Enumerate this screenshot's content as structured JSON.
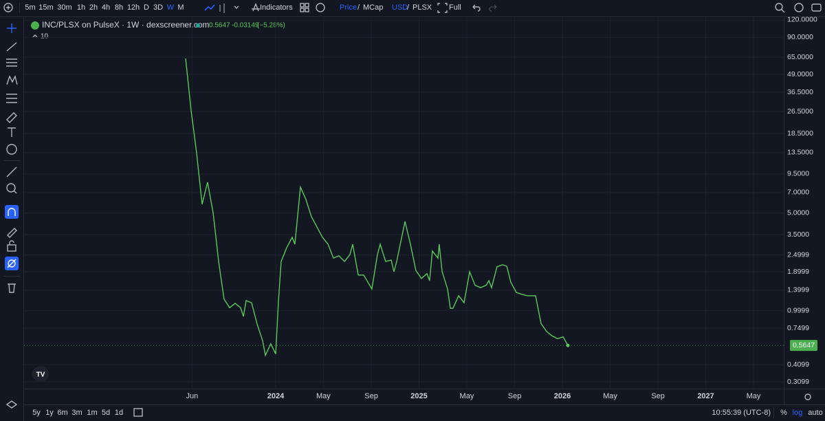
{
  "toolbar": {
    "intervals": [
      "5m",
      "15m",
      "30m",
      "1h",
      "2h",
      "4h",
      "8h",
      "12h",
      "D",
      "3D",
      "W",
      "M"
    ],
    "active_interval": "W",
    "indicators": "Indicators",
    "price": "Price",
    "mcap": "MCap",
    "usd": "USD",
    "plsx": "PLSX",
    "slash": "/",
    "full": "Full"
  },
  "bottom_bar": {
    "ranges": [
      "5y",
      "1y",
      "6m",
      "3m",
      "1m",
      "5d",
      "1d"
    ],
    "clock": "10:55:39 (UTC-8)",
    "percent": "%",
    "log": "log",
    "auto": "auto"
  },
  "chart_data": {
    "type": "line",
    "title": "INC/PLSX on PulseX · 1W · dexscreener.com",
    "indicator_value": "10",
    "last": 0.5647,
    "change": -0.03149,
    "change_pct_label": "(−5.28%)",
    "log_scale": true,
    "grid": true,
    "x": [
      2023.372,
      2023.41,
      2023.448,
      2023.487,
      2023.525,
      2023.564,
      2023.602,
      2023.64,
      2023.679,
      2023.717,
      2023.755,
      2023.775,
      2023.794,
      2023.832,
      2023.871,
      2023.909,
      2023.928,
      2023.966,
      2024.0,
      2024.019,
      2024.038,
      2024.077,
      2024.115,
      2024.134,
      2024.173,
      2024.211,
      2024.249,
      2024.288,
      2024.326,
      2024.365,
      2024.403,
      2024.441,
      2024.48,
      2024.518,
      2024.537,
      2024.576,
      2024.614,
      2024.671,
      2024.71,
      2024.729,
      2024.767,
      2024.806,
      2024.825,
      2024.844,
      2024.902,
      2024.94,
      2024.978,
      2025.017,
      2025.055,
      2025.074,
      2025.093,
      2025.132,
      2025.141,
      2025.161,
      2025.199,
      2025.218,
      2025.237,
      2025.276,
      2025.314,
      2025.353,
      2025.391,
      2025.429,
      2025.468,
      2025.487,
      2025.506,
      2025.544,
      2025.583,
      2025.612,
      2025.64,
      2025.679,
      2025.717,
      2025.755,
      2025.794,
      2025.813,
      2025.851,
      2025.89,
      2025.928,
      2025.966,
      2026.005,
      2026.038
    ],
    "series": [
      {
        "name": "INC/PLSX",
        "color": "#5cc85c",
        "values": [
          63.6,
          27.2,
          13.5,
          5.77,
          8.29,
          4.98,
          2.25,
          1.21,
          1.05,
          1.13,
          1.05,
          0.91,
          1.18,
          1.14,
          0.8,
          0.61,
          0.48,
          0.58,
          0.49,
          1.14,
          2.25,
          2.82,
          3.35,
          2.99,
          7.65,
          6.25,
          4.7,
          3.97,
          3.35,
          2.99,
          2.38,
          2.47,
          2.25,
          2.52,
          2.99,
          1.8,
          1.8,
          1.43,
          2.52,
          2.99,
          2.25,
          2.3,
          1.9,
          2.25,
          4.35,
          2.99,
          1.94,
          1.7,
          1.84,
          1.64,
          2.67,
          2.38,
          2.99,
          1.9,
          1.43,
          1.04,
          1.04,
          1.28,
          1.14,
          1.9,
          1.52,
          1.46,
          1.52,
          1.64,
          1.46,
          2.06,
          2.13,
          2.08,
          1.6,
          1.35,
          1.31,
          1.28,
          1.28,
          1.28,
          0.81,
          0.71,
          0.66,
          0.63,
          0.65,
          0.5647
        ]
      }
    ],
    "xlim": [
      2022.245,
      2027.544
    ],
    "xticks": [
      {
        "value": 2023.417,
        "label": "Jun"
      },
      2024,
      {
        "value": 2024.333,
        "label": "May"
      },
      {
        "value": 2024.667,
        "label": "Sep"
      },
      2025,
      {
        "value": 2025.333,
        "label": "May"
      },
      {
        "value": 2025.667,
        "label": "Sep"
      },
      2026,
      {
        "value": 2026.333,
        "label": "May"
      },
      {
        "value": 2026.667,
        "label": "Sep"
      },
      2027,
      {
        "value": 2027.333,
        "label": "May"
      }
    ],
    "ylim": [
      0.277,
      125.5
    ],
    "yticks": [
      {
        "value": 120,
        "label": "120.0000"
      },
      {
        "value": 90,
        "label": "90.0000"
      },
      {
        "value": 65,
        "label": "65.0000"
      },
      {
        "value": 49,
        "label": "49.0000"
      },
      {
        "value": 36.5,
        "label": "36.5000"
      },
      {
        "value": 26.5,
        "label": "26.5000"
      },
      {
        "value": 18.5,
        "label": "18.5000"
      },
      {
        "value": 13.5,
        "label": "13.5000"
      },
      {
        "value": 9.5,
        "label": "9.5000"
      },
      {
        "value": 7,
        "label": "7.0000"
      },
      {
        "value": 5,
        "label": "5.0000"
      },
      {
        "value": 3.5,
        "label": "3.5000"
      },
      2.4999,
      1.8999,
      1.3999,
      0.9999,
      0.7499,
      0.4099,
      0.3099
    ]
  }
}
